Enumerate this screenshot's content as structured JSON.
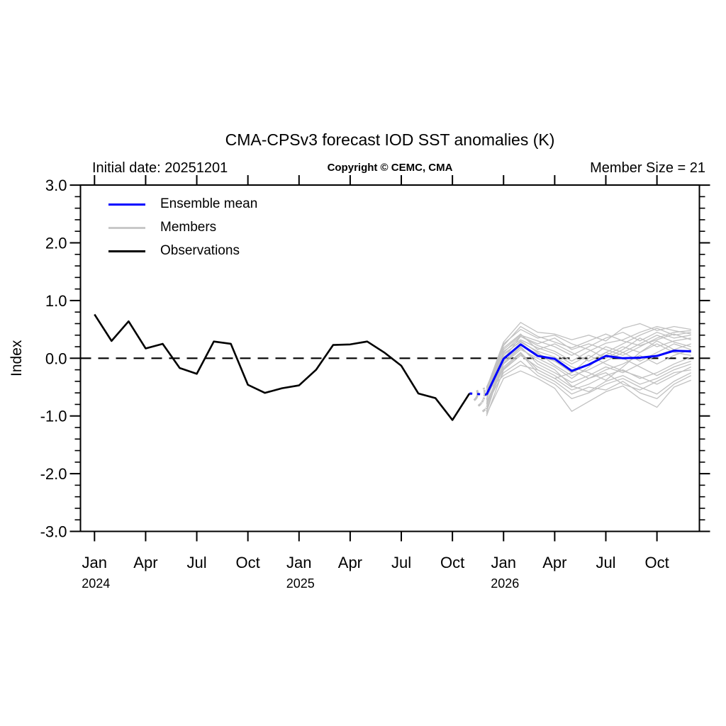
{
  "title": "CMA-CPSv3 forecast IOD SST anomalies (K)",
  "annotations": {
    "initial_date": "Initial date: 20251201",
    "copyright": "Copyright © CEMC, CMA",
    "member_size": "Member Size = 21"
  },
  "legend": {
    "items": [
      {
        "id": "ensemble-mean",
        "label": "Ensemble mean",
        "color": "#0000ff"
      },
      {
        "id": "members",
        "label": "Members",
        "color": "#c8c8c8"
      },
      {
        "id": "observations",
        "label": "Observations",
        "color": "#000000"
      }
    ]
  },
  "chart_data": {
    "type": "line",
    "title": "CMA-CPSv3 forecast IOD SST anomalies (K)",
    "xlabel": "",
    "ylabel": "Index",
    "ylim": [
      -3.0,
      3.0
    ],
    "grid": false,
    "zero_line_style": "dashed",
    "month_index_note": "month index 0 = Jan 2024",
    "y_axis": {
      "label": "Index",
      "major_ticks": [
        3.0,
        2.0,
        1.0,
        0.0,
        -1.0,
        -2.0,
        -3.0
      ],
      "major_tick_labels": [
        "3.0",
        "2.0",
        "1.0",
        "0.0",
        "-1.0",
        "-2.0",
        "-3.0"
      ],
      "minor_step": 0.2
    },
    "x_axis": {
      "ticks": [
        {
          "month_index": 0,
          "label": "Jan",
          "year_label": "2024"
        },
        {
          "month_index": 3,
          "label": "Apr"
        },
        {
          "month_index": 6,
          "label": "Jul"
        },
        {
          "month_index": 9,
          "label": "Oct"
        },
        {
          "month_index": 12,
          "label": "Jan",
          "year_label": "2025"
        },
        {
          "month_index": 15,
          "label": "Apr"
        },
        {
          "month_index": 18,
          "label": "Jul"
        },
        {
          "month_index": 21,
          "label": "Oct"
        },
        {
          "month_index": 24,
          "label": "Jan",
          "year_label": "2026"
        },
        {
          "month_index": 27,
          "label": "Apr"
        },
        {
          "month_index": 30,
          "label": "Jul"
        },
        {
          "month_index": 33,
          "label": "Oct"
        }
      ]
    },
    "series": {
      "observations": {
        "label": "Observations",
        "color": "#000000",
        "start_month_index": 0,
        "monthly_values": [
          0.76,
          0.3,
          0.64,
          0.17,
          0.25,
          -0.17,
          -0.27,
          0.29,
          0.25,
          -0.46,
          -0.6,
          -0.52,
          -0.47,
          -0.2,
          0.23,
          0.24,
          0.29,
          0.1,
          -0.13,
          -0.61,
          -0.69,
          -1.07,
          -0.61
        ]
      },
      "ensemble_mean": {
        "label": "Ensemble mean",
        "color": "#0000ff",
        "start_month_index": 23,
        "monthly_values": [
          -0.63,
          -0.01,
          0.24,
          0.04,
          -0.01,
          -0.22,
          -0.11,
          0.04,
          0.0,
          0.01,
          0.04,
          0.13,
          0.12
        ]
      },
      "members": {
        "label": "Members",
        "color": "#c1c1c1",
        "count": 21,
        "start_month_index": 23,
        "runs": [
          [
            -0.55,
            0.1,
            0.38,
            0.22,
            0.12,
            -0.05,
            0.12,
            0.26,
            0.32,
            0.45,
            0.55,
            0.48,
            0.42
          ],
          [
            -0.6,
            0.22,
            0.55,
            0.38,
            0.28,
            0.18,
            0.3,
            0.42,
            0.3,
            0.22,
            0.32,
            0.42,
            0.32
          ],
          [
            -0.52,
            0.28,
            0.62,
            0.45,
            0.42,
            0.32,
            0.4,
            0.3,
            0.52,
            0.6,
            0.48,
            0.55,
            0.5
          ],
          [
            -0.65,
            0.05,
            0.3,
            0.1,
            -0.12,
            -0.3,
            -0.2,
            -0.05,
            0.1,
            0.25,
            0.4,
            0.28,
            0.2
          ],
          [
            -0.7,
            -0.05,
            0.2,
            -0.1,
            -0.25,
            -0.42,
            -0.3,
            -0.15,
            -0.25,
            -0.1,
            0.05,
            0.15,
            0.1
          ],
          [
            -0.75,
            -0.15,
            0.1,
            -0.2,
            -0.35,
            -0.55,
            -0.45,
            -0.3,
            -0.2,
            -0.35,
            -0.25,
            -0.1,
            0.02
          ],
          [
            -0.8,
            -0.25,
            -0.05,
            -0.3,
            -0.45,
            -0.7,
            -0.6,
            -0.45,
            -0.35,
            -0.5,
            -0.62,
            -0.4,
            -0.25
          ],
          [
            -0.97,
            -0.35,
            -0.22,
            -0.35,
            -0.52,
            -0.92,
            -0.75,
            -0.58,
            -0.48,
            -0.7,
            -0.85,
            -0.5,
            -0.38
          ],
          [
            -0.88,
            -0.1,
            0.15,
            0.0,
            -0.15,
            -0.35,
            -0.15,
            0.1,
            0.0,
            -0.15,
            -0.3,
            -0.15,
            -0.05
          ],
          [
            -0.92,
            0.0,
            0.25,
            0.05,
            -0.05,
            -0.25,
            0.0,
            0.2,
            0.1,
            -0.05,
            0.1,
            0.25,
            0.15
          ],
          [
            -1.0,
            -0.2,
            0.05,
            -0.15,
            -0.3,
            -0.5,
            -0.35,
            -0.2,
            -0.1,
            0.05,
            -0.1,
            0.05,
            0.15
          ],
          [
            -0.5,
            0.15,
            0.4,
            0.3,
            0.2,
            0.05,
            0.2,
            0.35,
            0.45,
            0.3,
            0.45,
            0.35,
            0.4
          ],
          [
            -0.56,
            0.25,
            0.5,
            0.35,
            0.4,
            0.25,
            0.15,
            0.0,
            0.15,
            0.35,
            0.2,
            0.3,
            0.35
          ],
          [
            -0.62,
            0.08,
            0.28,
            0.12,
            0.02,
            -0.15,
            -0.25,
            -0.38,
            -0.15,
            0.1,
            0.3,
            0.15,
            0.25
          ],
          [
            -0.66,
            -0.08,
            0.18,
            -0.05,
            -0.2,
            -0.48,
            -0.58,
            -0.4,
            -0.3,
            -0.45,
            -0.35,
            -0.2,
            -0.1
          ],
          [
            -0.72,
            0.12,
            0.32,
            0.18,
            0.08,
            -0.1,
            0.05,
            -0.1,
            -0.22,
            -0.32,
            -0.45,
            -0.3,
            -0.15
          ],
          [
            -0.78,
            -0.18,
            0.08,
            -0.25,
            -0.4,
            -0.62,
            -0.5,
            -0.55,
            -0.4,
            -0.6,
            -0.7,
            -0.45,
            -0.3
          ],
          [
            -0.84,
            0.02,
            0.22,
            0.08,
            -0.05,
            -0.2,
            -0.35,
            -0.25,
            -0.45,
            -0.55,
            -0.4,
            -0.25,
            -0.2
          ],
          [
            -0.58,
            -0.3,
            -0.12,
            -0.2,
            -0.35,
            -0.25,
            -0.1,
            0.05,
            0.2,
            0.1,
            0.25,
            0.1,
            0.05
          ],
          [
            -0.94,
            -0.02,
            0.38,
            0.25,
            0.35,
            0.15,
            0.25,
            0.15,
            0.05,
            0.2,
            0.35,
            0.45,
            0.48
          ],
          [
            -0.64,
            0.18,
            0.42,
            0.15,
            0.25,
            0.1,
            -0.05,
            0.1,
            0.25,
            0.4,
            0.52,
            0.4,
            0.45
          ]
        ]
      }
    },
    "forecast_connector": {
      "style": "dashed",
      "from_month_index": 22,
      "to_month_index": 23
    }
  }
}
